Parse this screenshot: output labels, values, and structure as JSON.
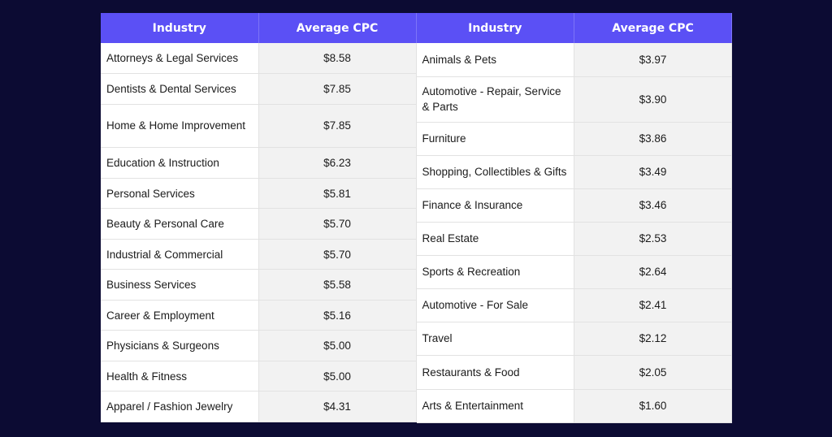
{
  "tables": [
    {
      "headers": [
        "Industry",
        "Average CPC"
      ],
      "rows": [
        {
          "industry": "Attorneys & Legal Services",
          "cpc": "$8.58"
        },
        {
          "industry": "Dentists & Dental Services",
          "cpc": "$7.85"
        },
        {
          "industry": "Home & Home Improvement",
          "cpc": "$7.85"
        },
        {
          "industry": "Education & Instruction",
          "cpc": "$6.23"
        },
        {
          "industry": "Personal Services",
          "cpc": "$5.81"
        },
        {
          "industry": "Beauty & Personal Care",
          "cpc": "$5.70"
        },
        {
          "industry": "Industrial & Commercial",
          "cpc": "$5.70"
        },
        {
          "industry": "Business Services",
          "cpc": "$5.58"
        },
        {
          "industry": "Career & Employment",
          "cpc": "$5.16"
        },
        {
          "industry": "Physicians & Surgeons",
          "cpc": "$5.00"
        },
        {
          "industry": "Health & Fitness",
          "cpc": "$5.00"
        },
        {
          "industry": "Apparel / Fashion Jewelry",
          "cpc": "$4.31"
        }
      ]
    },
    {
      "headers": [
        "Industry",
        "Average CPC"
      ],
      "rows": [
        {
          "industry": "Animals & Pets",
          "cpc": "$3.97"
        },
        {
          "industry": "Automotive - Repair, Service & Parts",
          "cpc": "$3.90"
        },
        {
          "industry": "Furniture",
          "cpc": "$3.86"
        },
        {
          "industry": "Shopping, Collectibles & Gifts",
          "cpc": "$3.49"
        },
        {
          "industry": "Finance & Insurance",
          "cpc": "$3.46"
        },
        {
          "industry": "Real Estate",
          "cpc": "$2.53"
        },
        {
          "industry": "Sports & Recreation",
          "cpc": "$2.64"
        },
        {
          "industry": "Automotive - For Sale",
          "cpc": "$2.41"
        },
        {
          "industry": "Travel",
          "cpc": "$2.12"
        },
        {
          "industry": "Restaurants & Food",
          "cpc": "$2.05"
        },
        {
          "industry": "Arts & Entertainment",
          "cpc": "$1.60"
        }
      ]
    }
  ],
  "colors": {
    "background": "#0c0b33",
    "header": "#5b50f5",
    "cpc_cell": "#f2f2f2"
  }
}
